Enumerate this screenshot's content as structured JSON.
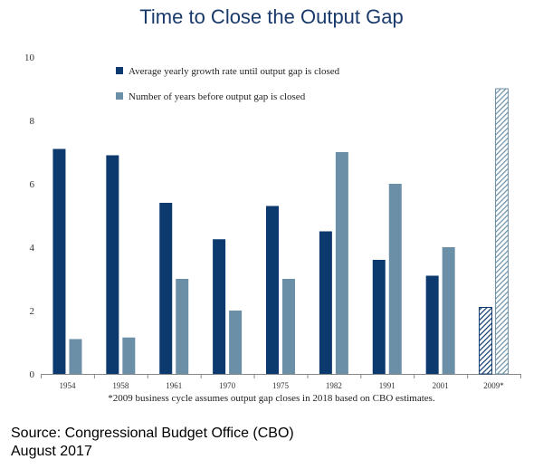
{
  "title": "Time to Close the Output Gap",
  "footnote": "*2009 business cycle assumes output gap closes in 2018 based on CBO estimates.",
  "source_line1": "Source: Congressional Budget Office (CBO)",
  "source_line2": "August 2017",
  "colors": {
    "dark_blue": "#0d3a6e",
    "light_blue": "#6b8fa6",
    "title": "#1a3a6b"
  },
  "chart_data": {
    "type": "bar",
    "title": "Time to Close the Output Gap",
    "xlabel": "",
    "ylabel": "",
    "ylim": [
      0,
      10
    ],
    "y_ticks": [
      0,
      2,
      4,
      6,
      8,
      10
    ],
    "grid": false,
    "legend_position": "top-left",
    "categories": [
      "1954",
      "1958",
      "1961",
      "1970",
      "1975",
      "1982",
      "1991",
      "2001",
      "2009*"
    ],
    "series": [
      {
        "name": "Average yearly growth rate until output gap is closed",
        "color": "#0d3a6e",
        "values": [
          7.1,
          6.9,
          5.4,
          4.25,
          5.3,
          4.5,
          3.6,
          3.1,
          2.1
        ]
      },
      {
        "name": "Number of years before output gap is closed",
        "color": "#6b8fa6",
        "values": [
          1.1,
          1.15,
          3,
          2,
          3,
          7,
          6,
          4,
          9
        ]
      }
    ],
    "hatched_categories": [
      "2009*"
    ]
  }
}
